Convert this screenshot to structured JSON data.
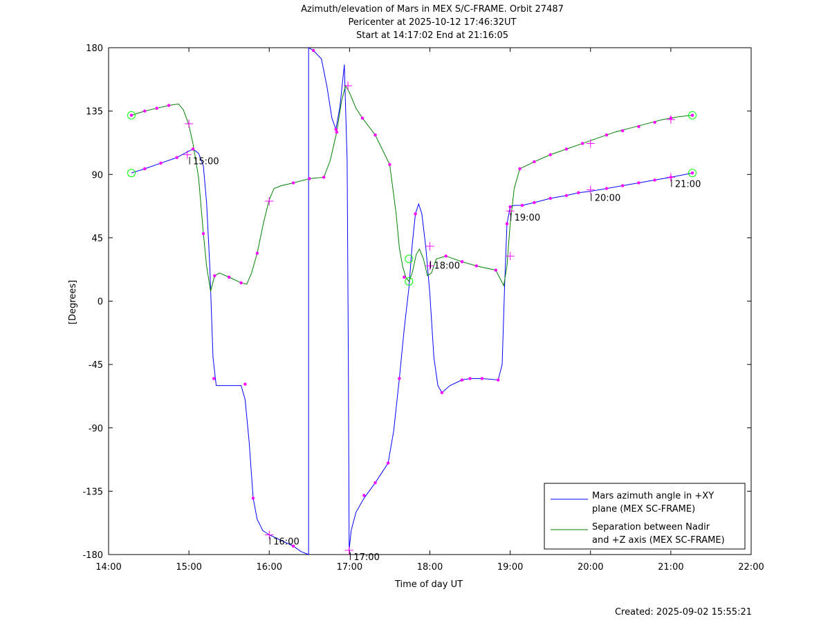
{
  "chart_data": {
    "type": "line",
    "title_lines": [
      "Azimuth/elevation of Mars in MEX S/C-FRAME.  Orbit 27487",
      "Pericenter at 2025-10-12 17:46:32UT",
      "Start at 14:17:02 End at 21:16:05"
    ],
    "xlabel": "Time of day UT",
    "ylabel": "[Degrees]",
    "xlim_hours": [
      14,
      22
    ],
    "ylim": [
      -180,
      180
    ],
    "x_ticks": [
      "14:00",
      "15:00",
      "16:00",
      "17:00",
      "18:00",
      "19:00",
      "20:00",
      "21:00",
      "22:00"
    ],
    "y_ticks": [
      180,
      135,
      90,
      45,
      0,
      -45,
      -90,
      -135,
      -180
    ],
    "grid": false,
    "legend_position": "bottom-right",
    "colors": {
      "azimuth": "#0000ff",
      "separation": "#008000",
      "marker": "#ff00ff",
      "circle": "#00ff00"
    },
    "series": [
      {
        "name": "Mars azimuth angle in +XY\nplane (MEX SC-FRAME)",
        "legend_lines": [
          "Mars azimuth angle in +XY",
          "plane (MEX SC-FRAME)"
        ],
        "color": "#0000ff",
        "points": [
          [
            14.284,
            91
          ],
          [
            14.45,
            94
          ],
          [
            14.65,
            98
          ],
          [
            14.85,
            102
          ],
          [
            14.98,
            106
          ],
          [
            15.05,
            108
          ],
          [
            15.12,
            105
          ],
          [
            15.18,
            96
          ],
          [
            15.22,
            70
          ],
          [
            15.26,
            25
          ],
          [
            15.3,
            -40
          ],
          [
            15.34,
            -60
          ],
          [
            15.38,
            -60
          ],
          [
            15.5,
            -60
          ],
          [
            15.65,
            -60
          ],
          [
            15.7,
            -70
          ],
          [
            15.75,
            -100
          ],
          [
            15.8,
            -140
          ],
          [
            15.85,
            -155
          ],
          [
            15.92,
            -163
          ],
          [
            16.0,
            -166
          ],
          [
            16.15,
            -170
          ],
          [
            16.3,
            -174
          ],
          [
            16.4,
            -178
          ],
          [
            16.49,
            -180
          ],
          [
            16.49,
            180
          ],
          [
            16.55,
            178
          ],
          [
            16.65,
            172
          ],
          [
            16.72,
            152
          ],
          [
            16.78,
            130
          ],
          [
            16.83,
            122
          ],
          [
            16.88,
            138
          ],
          [
            16.93,
            165
          ],
          [
            16.935,
            168
          ],
          [
            16.97,
            100
          ],
          [
            16.985,
            -40
          ],
          [
            16.995,
            -177
          ],
          [
            17.02,
            -163
          ],
          [
            17.08,
            -150
          ],
          [
            17.18,
            -140
          ],
          [
            17.32,
            -129
          ],
          [
            17.48,
            -115
          ],
          [
            17.55,
            -92
          ],
          [
            17.62,
            -55
          ],
          [
            17.68,
            -20
          ],
          [
            17.74,
            10
          ],
          [
            17.78,
            40
          ],
          [
            17.82,
            62
          ],
          [
            17.86,
            69
          ],
          [
            17.9,
            62
          ],
          [
            17.95,
            38
          ],
          [
            18.0,
            5
          ],
          [
            18.05,
            -40
          ],
          [
            18.1,
            -60
          ],
          [
            18.15,
            -65
          ],
          [
            18.25,
            -60
          ],
          [
            18.4,
            -56
          ],
          [
            18.5,
            -55
          ],
          [
            18.65,
            -55
          ],
          [
            18.85,
            -56
          ],
          [
            18.9,
            -45
          ],
          [
            18.93,
            10
          ],
          [
            18.96,
            55
          ],
          [
            19.0,
            67
          ],
          [
            19.05,
            68
          ],
          [
            19.15,
            68
          ],
          [
            19.3,
            70
          ],
          [
            19.5,
            73
          ],
          [
            19.7,
            75
          ],
          [
            19.85,
            77
          ],
          [
            20.0,
            78
          ],
          [
            20.2,
            80
          ],
          [
            20.4,
            82
          ],
          [
            20.6,
            84
          ],
          [
            20.8,
            86
          ],
          [
            21.0,
            88
          ],
          [
            21.268,
            91
          ]
        ]
      },
      {
        "name": "Separation between Nadir\nand +Z axis (MEX SC-FRAME)",
        "legend_lines": [
          "Separation between Nadir",
          "and +Z axis (MEX SC-FRAME)"
        ],
        "color": "#008000",
        "points": [
          [
            14.284,
            132
          ],
          [
            14.45,
            135
          ],
          [
            14.6,
            137
          ],
          [
            14.75,
            139
          ],
          [
            14.87,
            140
          ],
          [
            14.93,
            136
          ],
          [
            15.0,
            125
          ],
          [
            15.05,
            112
          ],
          [
            15.12,
            88
          ],
          [
            15.18,
            48
          ],
          [
            15.22,
            25
          ],
          [
            15.27,
            7
          ],
          [
            15.32,
            18
          ],
          [
            15.38,
            20
          ],
          [
            15.5,
            17
          ],
          [
            15.65,
            13
          ],
          [
            15.72,
            12
          ],
          [
            15.78,
            20
          ],
          [
            15.85,
            34
          ],
          [
            15.93,
            56
          ],
          [
            16.0,
            72
          ],
          [
            16.06,
            80
          ],
          [
            16.15,
            82
          ],
          [
            16.3,
            84
          ],
          [
            16.5,
            87
          ],
          [
            16.68,
            88
          ],
          [
            16.76,
            100
          ],
          [
            16.84,
            120
          ],
          [
            16.9,
            142
          ],
          [
            16.95,
            153
          ],
          [
            17.0,
            148
          ],
          [
            17.08,
            137
          ],
          [
            17.16,
            130
          ],
          [
            17.32,
            118
          ],
          [
            17.5,
            97
          ],
          [
            17.58,
            62
          ],
          [
            17.62,
            38
          ],
          [
            17.66,
            25
          ],
          [
            17.7,
            17
          ],
          [
            17.74,
            14
          ],
          [
            17.78,
            20
          ],
          [
            17.83,
            33
          ],
          [
            17.87,
            37
          ],
          [
            17.92,
            30
          ],
          [
            17.97,
            18
          ],
          [
            18.02,
            20
          ],
          [
            18.08,
            30
          ],
          [
            18.2,
            32
          ],
          [
            18.4,
            28
          ],
          [
            18.58,
            25
          ],
          [
            18.82,
            22
          ],
          [
            18.92,
            11
          ],
          [
            18.96,
            25
          ],
          [
            19.0,
            55
          ],
          [
            19.05,
            80
          ],
          [
            19.12,
            94
          ],
          [
            19.3,
            99
          ],
          [
            19.5,
            104
          ],
          [
            19.7,
            108
          ],
          [
            19.9,
            112
          ],
          [
            20.1,
            116
          ],
          [
            20.3,
            120
          ],
          [
            20.5,
            123
          ],
          [
            20.7,
            126
          ],
          [
            20.9,
            129
          ],
          [
            21.1,
            131
          ],
          [
            21.268,
            132
          ]
        ]
      }
    ],
    "dot_markers": [
      [
        14.284,
        132
      ],
      [
        14.45,
        135
      ],
      [
        14.6,
        137
      ],
      [
        14.75,
        139
      ],
      [
        15.18,
        48
      ],
      [
        15.32,
        18
      ],
      [
        15.5,
        17
      ],
      [
        15.65,
        13
      ],
      [
        15.85,
        34
      ],
      [
        16.3,
        84
      ],
      [
        16.5,
        87
      ],
      [
        16.68,
        88
      ],
      [
        16.84,
        120
      ],
      [
        17.16,
        130
      ],
      [
        17.32,
        118
      ],
      [
        17.5,
        97
      ],
      [
        17.68,
        17
      ],
      [
        18.2,
        32
      ],
      [
        18.4,
        28
      ],
      [
        18.58,
        25
      ],
      [
        18.82,
        22
      ],
      [
        19.12,
        94
      ],
      [
        19.3,
        99
      ],
      [
        19.5,
        104
      ],
      [
        19.7,
        108
      ],
      [
        19.9,
        112
      ],
      [
        20.2,
        118
      ],
      [
        20.4,
        121
      ],
      [
        20.6,
        124
      ],
      [
        20.8,
        127
      ],
      [
        21.0,
        130
      ],
      [
        21.268,
        132
      ],
      [
        14.45,
        94
      ],
      [
        14.65,
        98
      ],
      [
        14.85,
        102
      ],
      [
        15.05,
        108
      ],
      [
        15.31,
        -55
      ],
      [
        15.7,
        -59
      ],
      [
        15.8,
        -140
      ],
      [
        16.3,
        -174
      ],
      [
        16.55,
        178
      ],
      [
        16.83,
        122
      ],
      [
        17.18,
        -138
      ],
      [
        17.32,
        -129
      ],
      [
        17.48,
        -115
      ],
      [
        17.62,
        -55
      ],
      [
        17.82,
        62
      ],
      [
        18.15,
        -65
      ],
      [
        18.4,
        -56
      ],
      [
        18.5,
        -55
      ],
      [
        18.65,
        -55
      ],
      [
        18.85,
        -56
      ],
      [
        19.0,
        67
      ],
      [
        19.15,
        68
      ],
      [
        19.3,
        70
      ],
      [
        19.5,
        73
      ],
      [
        19.7,
        75
      ],
      [
        19.85,
        77
      ],
      [
        20.2,
        80
      ],
      [
        20.4,
        82
      ],
      [
        20.6,
        84
      ],
      [
        20.8,
        86
      ],
      [
        21.0,
        88
      ],
      [
        21.268,
        91
      ],
      [
        18.96,
        55
      ]
    ],
    "cross_markers": [
      [
        14.98,
        104
      ],
      [
        15.0,
        126
      ],
      [
        16.0,
        71
      ],
      [
        16.0,
        -166
      ],
      [
        16.995,
        -177
      ],
      [
        16.98,
        153
      ],
      [
        18.0,
        39
      ],
      [
        18.0,
        25
      ],
      [
        19.0,
        64
      ],
      [
        19.0,
        32
      ],
      [
        20.0,
        79
      ],
      [
        20.0,
        112
      ],
      [
        21.0,
        88
      ],
      [
        21.0,
        129
      ]
    ],
    "circle_markers": [
      [
        14.284,
        132
      ],
      [
        14.284,
        91
      ],
      [
        21.268,
        132
      ],
      [
        21.268,
        91
      ],
      [
        17.74,
        30
      ],
      [
        17.74,
        14
      ]
    ],
    "time_labels": [
      {
        "text": "15:00",
        "x": 15.0,
        "y": 104
      },
      {
        "text": "16:00",
        "x": 16.0,
        "y": -166
      },
      {
        "text": "17:00",
        "x": 17.0,
        "y": -177
      },
      {
        "text": "18:00",
        "x": 18.0,
        "y": 30
      },
      {
        "text": "19:00",
        "x": 19.0,
        "y": 64
      },
      {
        "text": "20:00",
        "x": 20.0,
        "y": 78
      },
      {
        "text": "21:00",
        "x": 21.0,
        "y": 88
      }
    ]
  },
  "footer": {
    "created": "Created: 2025-09-02 15:55:21"
  }
}
